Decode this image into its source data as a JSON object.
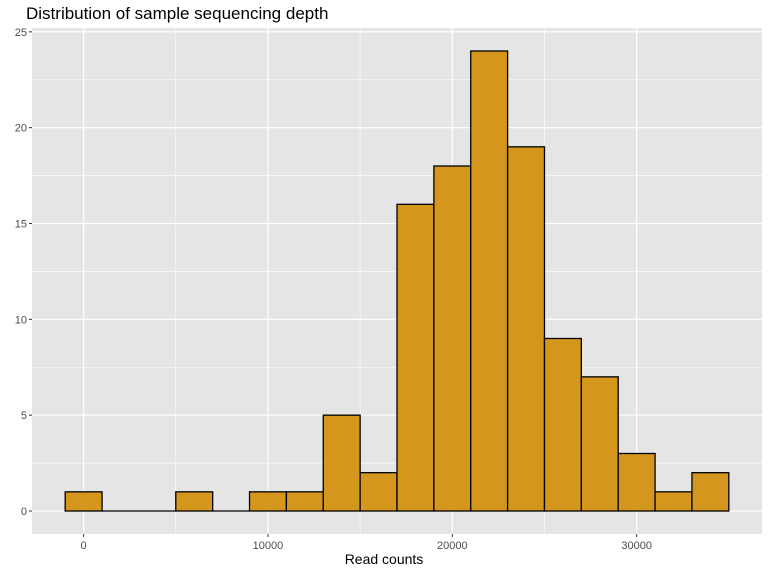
{
  "chart_data": {
    "type": "bar",
    "title": "Distribution of sample sequencing depth",
    "xlabel": "Read counts",
    "ylabel": "",
    "bin_edges": [
      -1000,
      1000,
      3000,
      5000,
      7000,
      9000,
      11000,
      13000,
      15000,
      17000,
      19000,
      21000,
      23000,
      25000,
      27000,
      29000,
      31000,
      33000,
      35000
    ],
    "counts": [
      1,
      0,
      0,
      1,
      0,
      1,
      1,
      5,
      2,
      16,
      18,
      24,
      19,
      9,
      7,
      3,
      1,
      2
    ],
    "xlim": [
      -2800,
      36800
    ],
    "ylim": [
      -1.2,
      25.2
    ],
    "x_ticks": [
      0,
      10000,
      20000,
      30000
    ],
    "x_tick_labels": [
      "0",
      "10000",
      "20000",
      "30000"
    ],
    "y_ticks": [
      0,
      5,
      10,
      15,
      20,
      25
    ],
    "y_tick_labels": [
      "0",
      "5",
      "10",
      "15",
      "20",
      "25"
    ],
    "grid": true,
    "colors": {
      "bar_fill": "#D4961C",
      "bar_stroke": "#000000",
      "panel_background": "#E5E5E5",
      "grid": "#FFFFFF"
    }
  }
}
